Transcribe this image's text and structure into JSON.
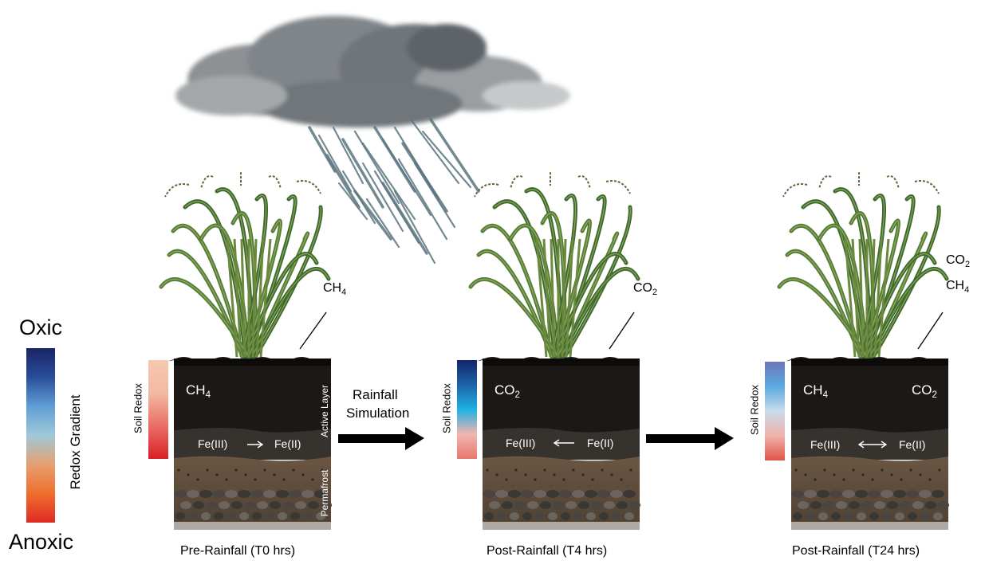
{
  "legend": {
    "top_label": "Oxic",
    "bottom_label": "Anoxic",
    "axis_label": "Redox Gradient",
    "gradient_colors": [
      "#1a2466",
      "#2a4e9a",
      "#5f9fd6",
      "#9fc9d8",
      "#e6a070",
      "#ef6f2c",
      "#e02a25"
    ]
  },
  "process_label_line1": "Rainfall",
  "process_label_line2": "Simulation",
  "panels": [
    {
      "caption": "Pre-Rainfall (T0 hrs)",
      "soil_redox_label": "Soil Redox",
      "soil_redox_colors": [
        "#f6c9ae",
        "#f3b9a3",
        "#ea6e66",
        "#d91f26"
      ],
      "gas_above": [
        {
          "base": "CH",
          "sub": "4"
        }
      ],
      "gas_in_soil": [
        {
          "base": "CH",
          "sub": "4"
        }
      ],
      "fe_left": "Fe(III)",
      "fe_right": "Fe(II)",
      "fe_arrow": "right",
      "layer_label_top": "Active Layer",
      "layer_label_bottom": "Permafrost"
    },
    {
      "caption": "Post-Rainfall (T4 hrs)",
      "soil_redox_label": "Soil Redox",
      "soil_redox_colors": [
        "#14256b",
        "#1d63a8",
        "#1fb1e3",
        "#f2b6b0",
        "#e8776e"
      ],
      "gas_above": [
        {
          "base": "CO",
          "sub": "2"
        }
      ],
      "gas_in_soil": [
        {
          "base": "CO",
          "sub": "2"
        }
      ],
      "fe_left": "Fe(III)",
      "fe_right": "Fe(II)",
      "fe_arrow": "left"
    },
    {
      "caption": "Post-Rainfall (T24 hrs)",
      "soil_redox_label": "Soil Redox",
      "soil_redox_colors": [
        "#6e76b8",
        "#5aa9e0",
        "#c9dceb",
        "#f0b2ab",
        "#e25349"
      ],
      "gas_above": [
        {
          "base": "CO",
          "sub": "2"
        },
        {
          "base": "CH",
          "sub": "4"
        }
      ],
      "gas_in_soil": [
        {
          "base": "CH",
          "sub": "4"
        },
        {
          "base": "CO",
          "sub": "2"
        }
      ],
      "fe_left": "Fe(III)",
      "fe_right": "Fe(II)",
      "fe_arrow": "both"
    }
  ],
  "colors": {
    "soil_dark": "#1b1816",
    "soil_band": "#33302b",
    "permafrost": "#6b5642",
    "stones": "#5a5550",
    "plant_leaf": "#3f6a2e",
    "plant_leaf_light": "#8faa5a",
    "cloud": "#7d8184",
    "rain": "#5b7680",
    "arrow": "#000000"
  },
  "icons": [
    "cloud-icon",
    "rain-icon",
    "plant-icon"
  ]
}
